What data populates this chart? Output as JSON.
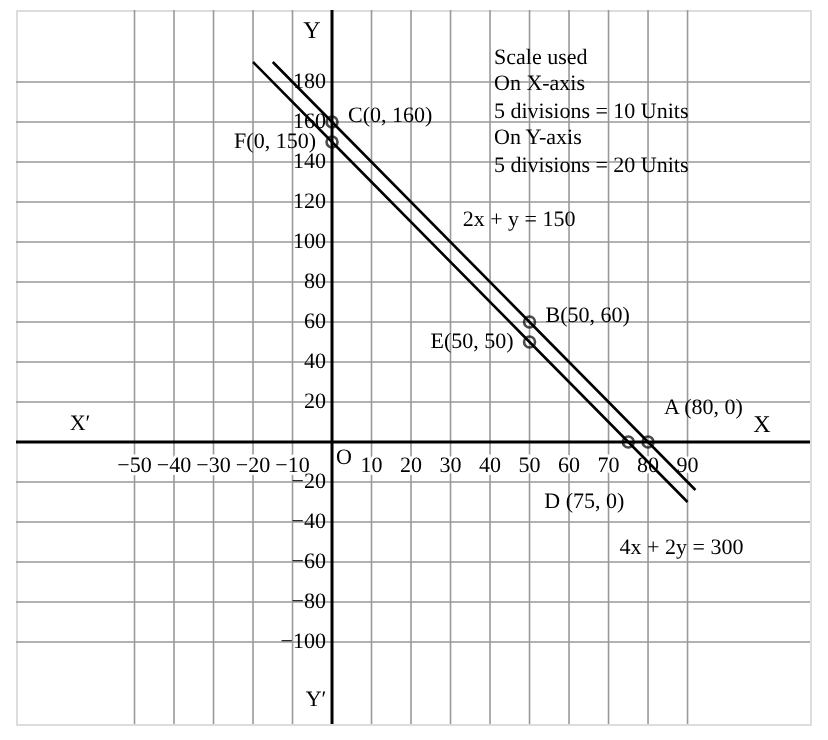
{
  "chart_data": {
    "type": "line",
    "xlabel": "X",
    "ylabel": "Y",
    "xlim": [
      -80,
      121
    ],
    "ylim": [
      -141,
      216
    ],
    "xticks": [
      -50,
      -40,
      -30,
      -20,
      -10,
      10,
      20,
      30,
      40,
      50,
      60,
      70,
      80,
      90
    ],
    "yticks": [
      -100,
      -80,
      -60,
      -40,
      -20,
      20,
      40,
      60,
      80,
      100,
      120,
      140,
      160,
      180
    ],
    "grid": true,
    "series": [
      {
        "color": "#000000",
        "x": [
          -15,
          0,
          50,
          80,
          92
        ],
        "values": [
          190,
          160,
          60,
          0,
          -24
        ]
      },
      {
        "color": "#000000",
        "x": [
          -20,
          0,
          50,
          75,
          90
        ],
        "values": [
          190,
          150,
          50,
          0,
          -30
        ]
      },
      {
        "type": "scatter",
        "color": "#000000",
        "marker": "circle",
        "x": [
          0,
          0,
          50,
          50,
          80,
          75
        ],
        "values": [
          160,
          150,
          60,
          50,
          0,
          0
        ]
      }
    ],
    "annotations": [
      {
        "text": "C(0, 160)",
        "x": 0,
        "y": 160
      },
      {
        "text": "F(0, 150)",
        "x": 0,
        "y": 150
      },
      {
        "text": "B(50, 60)",
        "x": 50,
        "y": 60
      },
      {
        "text": "E(50, 50)",
        "x": 50,
        "y": 50
      },
      {
        "text": "A (80, 0)",
        "x": 80,
        "y": 0
      },
      {
        "text": "D (75, 0)",
        "x": 75,
        "y": 0
      },
      {
        "text": "2x + y = 150",
        "x": 27,
        "y": 106
      },
      {
        "text": "4x + 2y = 300",
        "x": 89,
        "y": -28
      },
      "Scale used",
      "On X-axis",
      "5 divisions = 10 Units",
      "On Y-axis",
      "5 divisions = 20 Units",
      "X′",
      "Y′",
      "O"
    ]
  }
}
